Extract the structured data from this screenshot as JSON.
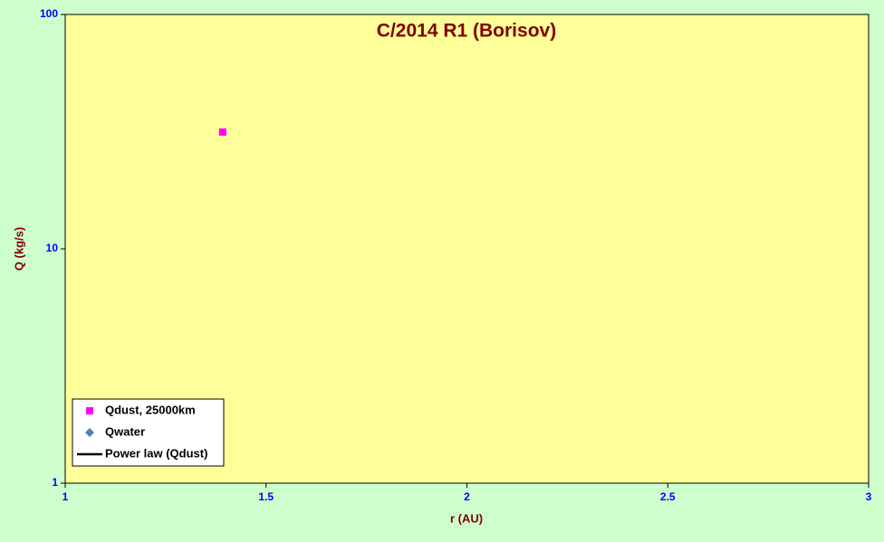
{
  "chart_data": {
    "type": "scatter",
    "title": "C/2014 R1 (Borisov)",
    "xlabel": "r (AU)",
    "ylabel": "Q (kg/s)",
    "xlim": [
      1,
      3
    ],
    "xticks": [
      1,
      1.5,
      2,
      2.5,
      3
    ],
    "ylim": [
      1,
      100
    ],
    "yticks": [
      1,
      10,
      100
    ],
    "ylog": true,
    "legend": "lower left",
    "series": [
      {
        "name": "Qdust, 25000km",
        "color": "#ff00ff",
        "marker": "square",
        "x": [
          1.392
        ],
        "values": [
          31.5
        ]
      },
      {
        "name": "Qwater",
        "color": "#4f81bd",
        "marker": "diamond",
        "x": [],
        "values": []
      },
      {
        "name": "Power law (Qdust)",
        "color": "#000000",
        "marker": "line",
        "x": [],
        "values": []
      }
    ]
  }
}
